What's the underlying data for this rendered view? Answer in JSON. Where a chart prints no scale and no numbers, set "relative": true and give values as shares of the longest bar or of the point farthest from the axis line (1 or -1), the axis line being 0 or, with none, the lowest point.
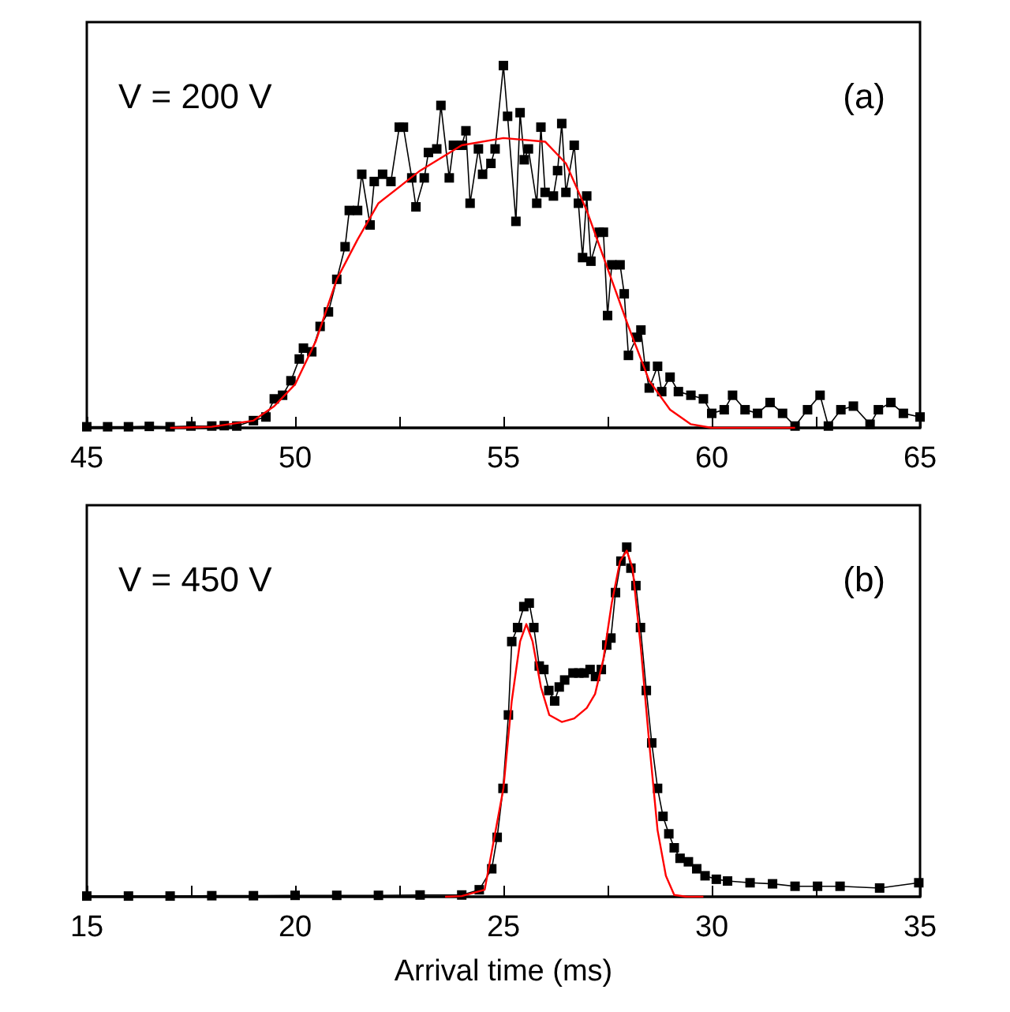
{
  "chart_data": [
    {
      "type": "line",
      "relative": true,
      "grid": false,
      "annotations": [
        "V = 200 V",
        "(a)"
      ],
      "xlim": [
        45,
        65
      ],
      "xticks": [
        45,
        {
          "value": 47.5,
          "label": null
        },
        50,
        {
          "value": 52.5,
          "label": null
        },
        55,
        {
          "value": 57.5,
          "label": null
        },
        60,
        {
          "value": 62.5,
          "label": null
        },
        65
      ],
      "series": [
        {
          "color": "#000000",
          "marker": "square",
          "x": [
            45.0,
            45.5,
            46.0,
            46.5,
            47.0,
            47.5,
            48.0,
            48.3,
            48.6,
            49.0,
            49.3,
            49.5,
            49.7,
            49.9,
            50.1,
            50.2,
            50.4,
            50.6,
            50.8,
            51.0,
            51.2,
            51.3,
            51.5,
            51.6,
            51.8,
            51.9,
            52.1,
            52.3,
            52.5,
            52.6,
            52.8,
            52.9,
            53.1,
            53.2,
            53.4,
            53.5,
            53.7,
            53.8,
            54.0,
            54.1,
            54.2,
            54.4,
            54.5,
            54.7,
            54.8,
            55.0,
            55.1,
            55.3,
            55.4,
            55.5,
            55.6,
            55.8,
            55.9,
            56.0,
            56.2,
            56.3,
            56.4,
            56.5,
            56.7,
            56.8,
            56.9,
            57.0,
            57.1,
            57.3,
            57.4,
            57.5,
            57.6,
            57.8,
            57.9,
            58.0,
            58.2,
            58.3,
            58.4,
            58.5,
            58.7,
            58.8,
            59.0,
            59.2,
            59.5,
            59.8,
            60.0,
            60.3,
            60.5,
            60.8,
            61.1,
            61.4,
            61.7,
            62.0,
            62.3,
            62.6,
            62.8,
            63.1,
            63.4,
            63.8,
            64.0,
            64.3,
            64.6,
            65.0
          ],
          "values": [
            0.003,
            0.003,
            0.003,
            0.004,
            0.003,
            0.005,
            0.005,
            0.006,
            0.005,
            0.02,
            0.03,
            0.08,
            0.09,
            0.13,
            0.19,
            0.22,
            0.21,
            0.28,
            0.32,
            0.41,
            0.5,
            0.6,
            0.6,
            0.7,
            0.56,
            0.68,
            0.7,
            0.68,
            0.83,
            0.83,
            0.69,
            0.61,
            0.69,
            0.76,
            0.77,
            0.89,
            0.69,
            0.78,
            0.78,
            0.82,
            0.62,
            0.77,
            0.7,
            0.73,
            0.77,
            1.0,
            0.86,
            0.57,
            0.87,
            0.74,
            0.77,
            0.62,
            0.83,
            0.65,
            0.64,
            0.71,
            0.84,
            0.65,
            0.78,
            0.62,
            0.47,
            0.64,
            0.46,
            0.54,
            0.54,
            0.31,
            0.45,
            0.45,
            0.37,
            0.2,
            0.25,
            0.27,
            0.17,
            0.11,
            0.17,
            0.1,
            0.14,
            0.1,
            0.09,
            0.08,
            0.04,
            0.05,
            0.09,
            0.05,
            0.04,
            0.07,
            0.04,
            0.005,
            0.05,
            0.09,
            0.005,
            0.05,
            0.06,
            0.01,
            0.05,
            0.07,
            0.04,
            0.03
          ]
        },
        {
          "color": "#ff0000",
          "marker": "none",
          "x": [
            47.0,
            48.0,
            49.0,
            49.5,
            50.0,
            50.5,
            51.0,
            51.5,
            52.0,
            53.0,
            54.0,
            55.0,
            56.0,
            56.5,
            57.0,
            57.5,
            58.0,
            58.5,
            59.0,
            59.5,
            60.0,
            62.0
          ],
          "values": [
            0,
            0.003,
            0.02,
            0.06,
            0.12,
            0.24,
            0.41,
            0.52,
            0.62,
            0.71,
            0.78,
            0.8,
            0.79,
            0.73,
            0.6,
            0.44,
            0.28,
            0.13,
            0.05,
            0.01,
            0,
            0
          ]
        }
      ]
    },
    {
      "type": "line",
      "relative": true,
      "grid": false,
      "xlabel": "Arrival time (ms)",
      "annotations": [
        "V = 450 V",
        "(b)"
      ],
      "xlim": [
        15,
        35
      ],
      "xticks": [
        15,
        {
          "value": 17.5,
          "label": null
        },
        20,
        {
          "value": 22.5,
          "label": null
        },
        25,
        {
          "value": 27.5,
          "label": null
        },
        30,
        {
          "value": 32.5,
          "label": null
        },
        35
      ],
      "series": [
        {
          "color": "#000000",
          "marker": "square",
          "x": [
            15.0,
            16.0,
            17.0,
            18.0,
            19.0,
            20.0,
            21.0,
            22.0,
            23.0,
            24.0,
            24.42,
            24.72,
            24.85,
            24.99,
            25.12,
            25.2,
            25.34,
            25.49,
            25.62,
            25.73,
            25.86,
            25.97,
            26.09,
            26.23,
            26.34,
            26.47,
            26.67,
            26.81,
            26.94,
            27.08,
            27.21,
            27.35,
            27.48,
            27.58,
            27.69,
            27.82,
            27.96,
            28.06,
            28.18,
            28.29,
            28.43,
            28.56,
            28.7,
            28.83,
            28.97,
            29.1,
            29.24,
            29.44,
            29.64,
            29.84,
            30.11,
            30.38,
            30.92,
            31.46,
            32.0,
            32.54,
            33.08,
            34.03,
            34.97
          ],
          "values": [
            0.002,
            0.002,
            0.002,
            0.003,
            0.003,
            0.004,
            0.004,
            0.004,
            0.005,
            0.005,
            0.02,
            0.08,
            0.17,
            0.31,
            0.52,
            0.73,
            0.77,
            0.83,
            0.84,
            0.77,
            0.66,
            0.65,
            0.59,
            0.56,
            0.6,
            0.62,
            0.64,
            0.64,
            0.64,
            0.65,
            0.63,
            0.65,
            0.72,
            0.74,
            0.87,
            0.96,
            1.0,
            0.94,
            0.89,
            0.77,
            0.59,
            0.44,
            0.31,
            0.23,
            0.18,
            0.14,
            0.11,
            0.1,
            0.08,
            0.06,
            0.05,
            0.045,
            0.04,
            0.037,
            0.03,
            0.03,
            0.03,
            0.025,
            0.04
          ]
        },
        {
          "color": "#ff0000",
          "marker": "none",
          "x": [
            23.6,
            24.0,
            24.55,
            25.0,
            25.2,
            25.4,
            25.55,
            25.7,
            25.9,
            26.1,
            26.4,
            26.7,
            27.0,
            27.2,
            27.4,
            27.6,
            27.8,
            27.96,
            28.1,
            28.3,
            28.5,
            28.7,
            28.9,
            29.1,
            29.4,
            29.8
          ],
          "values": [
            0,
            0.002,
            0.02,
            0.31,
            0.56,
            0.73,
            0.78,
            0.73,
            0.6,
            0.52,
            0.5,
            0.51,
            0.54,
            0.58,
            0.68,
            0.84,
            0.96,
            0.99,
            0.94,
            0.71,
            0.44,
            0.19,
            0.06,
            0.005,
            0,
            0
          ]
        }
      ]
    }
  ]
}
